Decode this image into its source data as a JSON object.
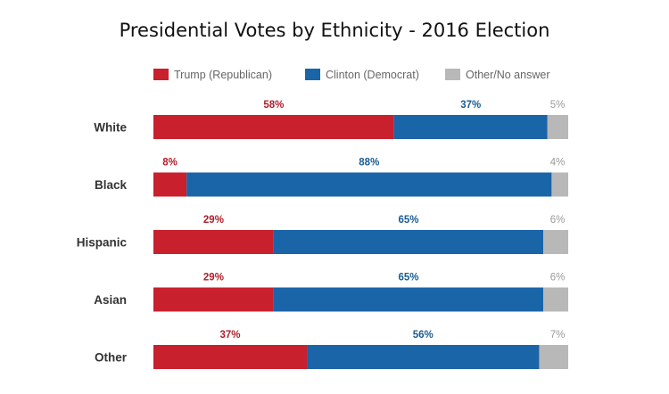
{
  "chart_data": {
    "type": "bar",
    "stacked": true,
    "orientation": "horizontal",
    "title": "Presidential Votes by Ethnicity - 2016 Election",
    "categories": [
      "White",
      "Black",
      "Hispanic",
      "Asian",
      "Other"
    ],
    "series": [
      {
        "name": "Trump (Republican)",
        "values": [
          58,
          8,
          29,
          29,
          37
        ],
        "color": "#c8202c",
        "label_color": "#b01e2a"
      },
      {
        "name": "Clinton (Democrat)",
        "values": [
          37,
          88,
          65,
          65,
          56
        ],
        "color": "#1a64a8",
        "label_color": "#1a5c92"
      },
      {
        "name": "Other/No answer",
        "values": [
          5,
          4,
          6,
          6,
          7
        ],
        "color": "#b8b8b8",
        "label_color": "#9a9a9a"
      }
    ],
    "value_suffix": "%",
    "xlim": [
      0,
      100
    ],
    "legend_position": "top",
    "grid": false
  }
}
